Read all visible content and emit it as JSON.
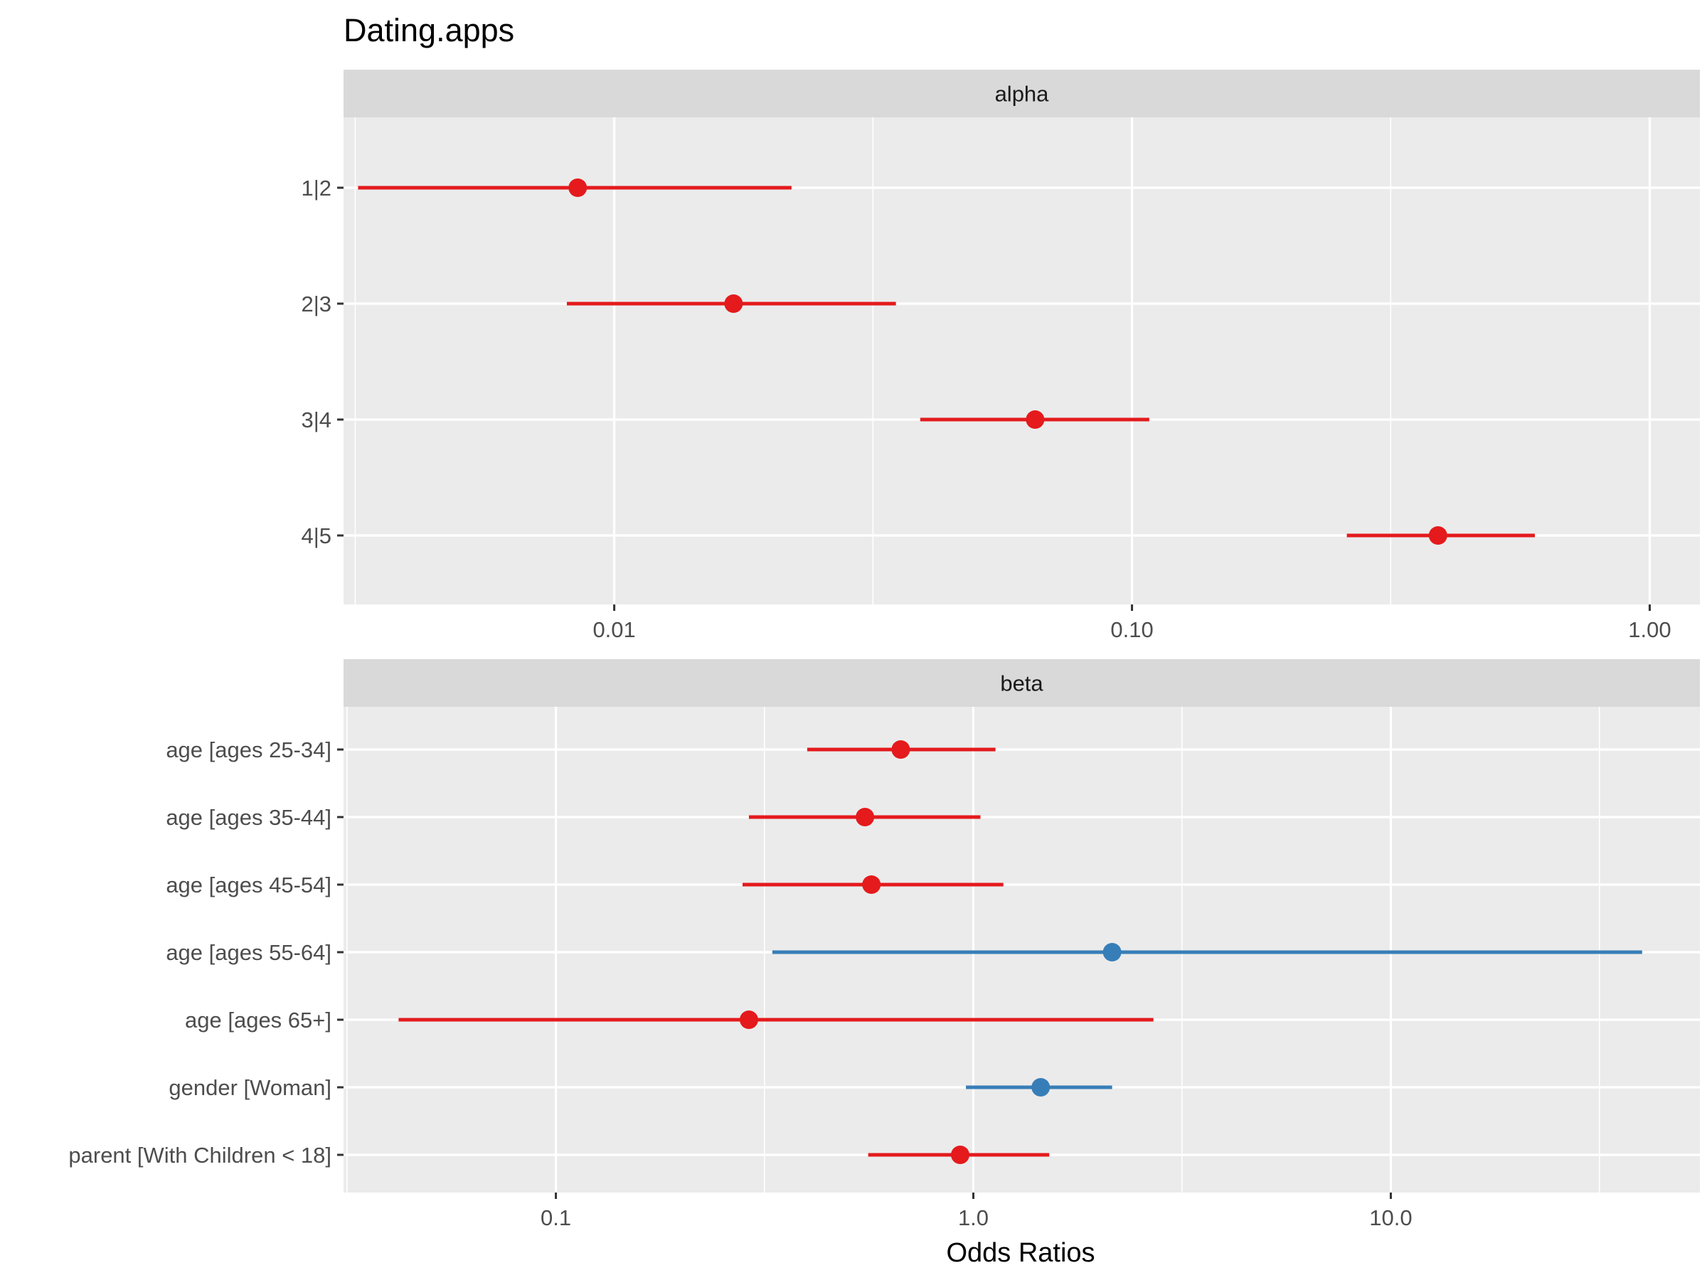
{
  "chart_data": {
    "type": "forest",
    "title": "Dating.apps",
    "xlabel": "Odds Ratios",
    "x_scale": "log10",
    "colors": {
      "negative": "#E41A1C",
      "positive": "#377EB8",
      "panel": "#EBEBEB",
      "strip": "#D9D9D9",
      "grid": "#FFFFFF"
    },
    "panels": [
      {
        "strip": "alpha",
        "xlim": [
          0.003,
          1.25
        ],
        "x_ticks": [
          0.01,
          0.1,
          1.0
        ],
        "x_tick_labels": [
          "0.01",
          "0.10",
          "1.00"
        ],
        "x_minor": [
          0.00316,
          0.0316,
          0.316
        ],
        "terms": [
          {
            "label": "1|2",
            "estimate": 0.0085,
            "low": 0.0032,
            "high": 0.022,
            "color": "#E41A1C"
          },
          {
            "label": "2|3",
            "estimate": 0.017,
            "low": 0.0081,
            "high": 0.035,
            "color": "#E41A1C"
          },
          {
            "label": "3|4",
            "estimate": 0.065,
            "low": 0.039,
            "high": 0.108,
            "color": "#E41A1C"
          },
          {
            "label": "4|5",
            "estimate": 0.39,
            "low": 0.26,
            "high": 0.6,
            "color": "#E41A1C"
          }
        ]
      },
      {
        "strip": "beta",
        "xlim": [
          0.031,
          55
        ],
        "x_ticks": [
          0.1,
          1.0,
          10.0
        ],
        "x_tick_labels": [
          "0.1",
          "1.0",
          "10.0"
        ],
        "x_minor": [
          0.0316,
          0.316,
          3.16,
          31.6
        ],
        "terms": [
          {
            "label": "age [ages 25-34]",
            "estimate": 0.67,
            "low": 0.4,
            "high": 1.13,
            "color": "#E41A1C"
          },
          {
            "label": "age [ages 35-44]",
            "estimate": 0.55,
            "low": 0.29,
            "high": 1.04,
            "color": "#E41A1C"
          },
          {
            "label": "age [ages 45-54]",
            "estimate": 0.57,
            "low": 0.28,
            "high": 1.18,
            "color": "#E41A1C"
          },
          {
            "label": "age [ages 55-64]",
            "estimate": 2.15,
            "low": 0.33,
            "high": 40,
            "color": "#377EB8"
          },
          {
            "label": "age [ages 65+]",
            "estimate": 0.29,
            "low": 0.042,
            "high": 2.7,
            "color": "#E41A1C"
          },
          {
            "label": "gender [Woman]",
            "estimate": 1.45,
            "low": 0.96,
            "high": 2.15,
            "color": "#377EB8"
          },
          {
            "label": "parent [With Children < 18]",
            "estimate": 0.93,
            "low": 0.56,
            "high": 1.52,
            "color": "#E41A1C"
          }
        ]
      }
    ]
  }
}
